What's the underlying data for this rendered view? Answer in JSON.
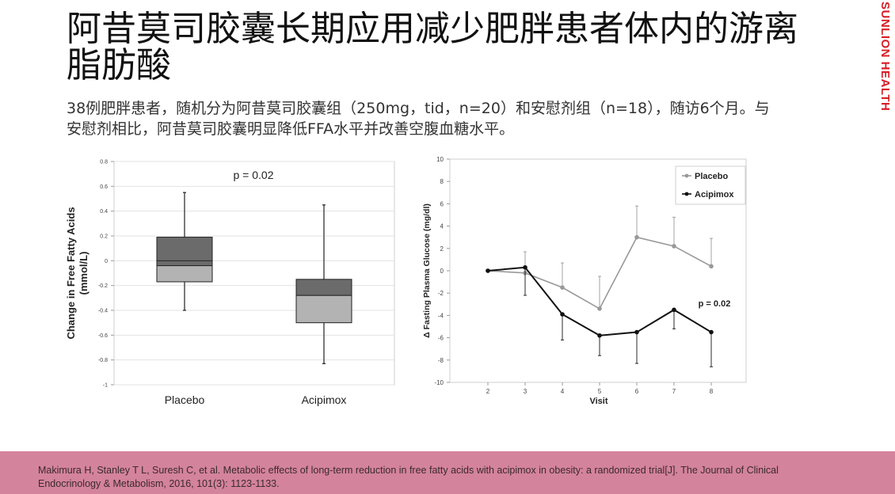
{
  "slide": {
    "title": "阿昔莫司胶囊长期应用减少肥胖患者体内的游离脂肪酸",
    "subtitle": "38例肥胖患者，随机分为阿昔莫司胶囊组（250mg，tid，n=20）和安慰剂组（n=18），随访6个月。与安慰剂相比，阿昔莫司胶囊明显降低FFA水平并改善空腹血糖水平。",
    "brand": "SUNLION HEALTH",
    "citation": "Makimura H, Stanley T L, Suresh C, et al. Metabolic effects of long-term reduction in free fatty acids with acipimox in obesity: a randomized trial[J]. The Journal of Clinical Endocrinology & Metabolism, 2016, 101(3): 1123-1133.",
    "colors": {
      "brand": "#d61f26",
      "footer": "#d4839c"
    }
  },
  "chart_data": [
    {
      "type": "box",
      "ylabel": "Change in Free Fatty Acids (mmol/L)",
      "ylabel_lines": [
        "Change in Free Fatty Acids",
        "(mmol/L)"
      ],
      "ylim": [
        -1,
        0.8
      ],
      "yticks": [
        -1,
        -0.8,
        -0.6,
        -0.4,
        -0.2,
        0,
        0.2,
        0.4,
        0.6,
        0.8
      ],
      "ytick_labels": [
        "-1",
        "-0.8",
        "-0.6",
        "-0.4",
        "-0.2",
        "0",
        "0.2",
        "0.4",
        "0.6",
        "0.8"
      ],
      "annotation": "p = 0.02",
      "grid": true,
      "categories": [
        "Placebo",
        "Acipimox"
      ],
      "boxes": [
        {
          "name": "Placebo",
          "min": -0.4,
          "q1": -0.17,
          "median": -0.04,
          "mean": 0.0,
          "q3": 0.19,
          "max": 0.55
        },
        {
          "name": "Acipimox",
          "min": -0.83,
          "q1": -0.5,
          "median": -0.28,
          "mean": -0.28,
          "q3": -0.15,
          "max": 0.45
        }
      ],
      "colors": {
        "upper": "#6b6b6b",
        "lower": "#b3b3b3"
      }
    },
    {
      "type": "line",
      "xlabel": "Visit",
      "ylabel": "Δ Fasting Plasma Glucose (mg/dl)",
      "x": [
        2,
        3,
        4,
        5,
        6,
        7,
        8
      ],
      "ylim": [
        -10,
        10
      ],
      "yticks": [
        -10,
        -8,
        -6,
        -4,
        -2,
        0,
        2,
        4,
        6,
        8,
        10
      ],
      "legend_position": "top-right",
      "annotation": "p = 0.02",
      "series": [
        {
          "name": "Placebo",
          "color": "#999999",
          "values": [
            0,
            -0.2,
            -1.5,
            -3.4,
            3.0,
            2.2,
            0.4
          ],
          "err": [
            0,
            1.9,
            2.2,
            2.9,
            2.8,
            2.6,
            2.5
          ]
        },
        {
          "name": "Acipimox",
          "color": "#111111",
          "values": [
            0,
            0.3,
            -3.9,
            -5.8,
            -5.5,
            -3.5,
            -5.5
          ],
          "err": [
            0,
            2.5,
            2.3,
            1.8,
            2.8,
            1.7,
            3.1
          ]
        }
      ]
    }
  ]
}
